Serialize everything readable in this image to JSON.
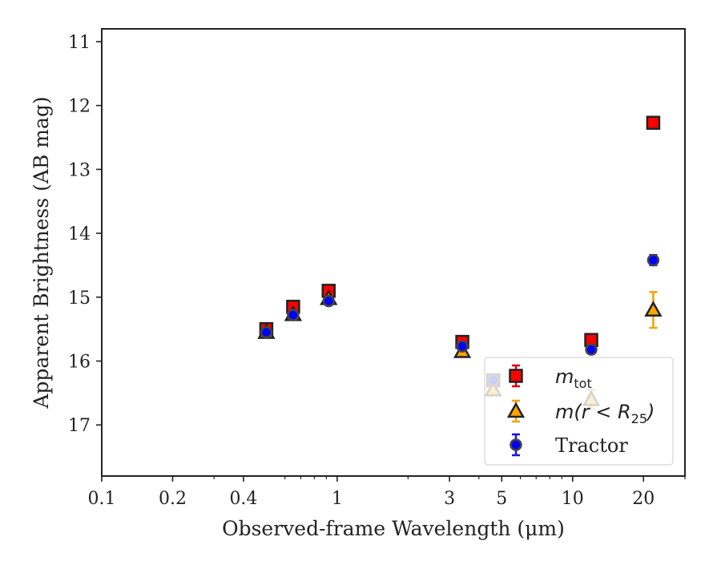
{
  "chart_data": {
    "type": "scatter",
    "xlabel": "Observed-frame Wavelength (μm)",
    "ylabel": "Apparent Brightness (AB mag)",
    "x_scale": "log",
    "xlim": [
      0.1,
      30
    ],
    "ylim": [
      17.8,
      10.8
    ],
    "y_inverted": true,
    "x_ticks": [
      0.1,
      0.2,
      0.4,
      1,
      3,
      5,
      10,
      20
    ],
    "x_tick_labels": [
      "0.1",
      "0.2",
      "0.4",
      "1",
      "3",
      "5",
      "10",
      "20"
    ],
    "y_ticks": [
      11,
      12,
      13,
      14,
      15,
      16,
      17
    ],
    "y_tick_labels": [
      "11",
      "12",
      "13",
      "14",
      "15",
      "16",
      "17"
    ],
    "legend_position": "lower-right",
    "series": [
      {
        "name": "m_tot",
        "marker": "square",
        "color": "#ff0000",
        "errcolor": "#dd0000",
        "points": [
          {
            "x": 0.5,
            "y": 15.5,
            "err": 0.04
          },
          {
            "x": 0.65,
            "y": 15.15,
            "err": 0.04
          },
          {
            "x": 0.92,
            "y": 14.9,
            "err": 0.04
          },
          {
            "x": 3.4,
            "y": 15.7,
            "err": 0.03
          },
          {
            "x": 4.6,
            "y": 16.3,
            "err": 0.04
          },
          {
            "x": 12.0,
            "y": 15.67,
            "err": 0.04
          },
          {
            "x": 22.0,
            "y": 12.27,
            "err": 0.04
          }
        ]
      },
      {
        "name": "m(r < R25)",
        "marker": "triangle",
        "color": "#ffa500",
        "errcolor": "#f5a000",
        "points": [
          {
            "x": 0.5,
            "y": 15.55,
            "err": 0.03
          },
          {
            "x": 0.65,
            "y": 15.27,
            "err": 0.03
          },
          {
            "x": 0.92,
            "y": 15.02,
            "err": 0.03
          },
          {
            "x": 3.4,
            "y": 15.85,
            "err": 0.04
          },
          {
            "x": 4.6,
            "y": 16.45,
            "err": 0.07
          },
          {
            "x": 12.0,
            "y": 16.6,
            "err": 0.15
          },
          {
            "x": 22.0,
            "y": 15.2,
            "err": 0.28
          }
        ]
      },
      {
        "name": "Tractor",
        "marker": "circle",
        "color": "#0000ff",
        "errcolor": "#1515ee",
        "points": [
          {
            "x": 0.5,
            "y": 15.55,
            "err": 0.03
          },
          {
            "x": 0.65,
            "y": 15.28,
            "err": 0.03
          },
          {
            "x": 0.92,
            "y": 15.06,
            "err": 0.03
          },
          {
            "x": 3.4,
            "y": 15.77,
            "err": 0.03
          },
          {
            "x": 4.6,
            "y": 16.3,
            "err": 0.04
          },
          {
            "x": 12.0,
            "y": 15.82,
            "err": 0.05
          },
          {
            "x": 22.0,
            "y": 14.42,
            "err": 0.08
          }
        ]
      }
    ],
    "legend": [
      {
        "label_main": "m",
        "label_sub": "tot"
      },
      {
        "label_main": "m(r < R",
        "label_sub": "25",
        "label_tail": ")"
      },
      {
        "label_main": "Tractor"
      }
    ]
  }
}
